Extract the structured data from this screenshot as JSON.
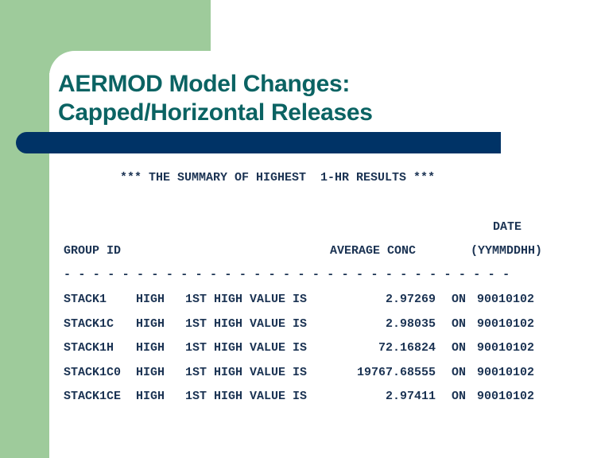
{
  "title_line1": "AERMOD Model Changes:",
  "title_line2": "Capped/Horizontal Releases",
  "colors": {
    "green": "#9ecb9b",
    "navy_bar": "#003366",
    "title": "#0b6363",
    "text": "#1b3353"
  },
  "summary_header": "*** THE SUMMARY OF HIGHEST  1-HR RESULTS ***",
  "columns": {
    "date": "DATE",
    "group_id": "GROUP ID",
    "average_conc": "AVERAGE CONC",
    "date_format": "(YYMMDDHH)"
  },
  "separator": "- - - - - - - - - - - - - - - - - - - - - - - - - - - - - - -",
  "rows": [
    {
      "group": "STACK1",
      "high": "HIGH",
      "rank": "1ST HIGH VALUE IS",
      "value": "2.97269",
      "on": "ON",
      "date": "90010102"
    },
    {
      "group": "STACK1C",
      "high": "HIGH",
      "rank": "1ST HIGH VALUE IS",
      "value": "2.98035",
      "on": "ON",
      "date": "90010102"
    },
    {
      "group": "STACK1H",
      "high": "HIGH",
      "rank": "1ST HIGH VALUE IS",
      "value": "72.16824",
      "on": "ON",
      "date": "90010102"
    },
    {
      "group": "STACK1C0",
      "high": "HIGH",
      "rank": "1ST HIGH VALUE IS",
      "value": "19767.68555",
      "on": "ON",
      "date": "90010102"
    },
    {
      "group": "STACK1CE",
      "high": "HIGH",
      "rank": "1ST HIGH VALUE IS",
      "value": "2.97411",
      "on": "ON",
      "date": "90010102"
    }
  ]
}
